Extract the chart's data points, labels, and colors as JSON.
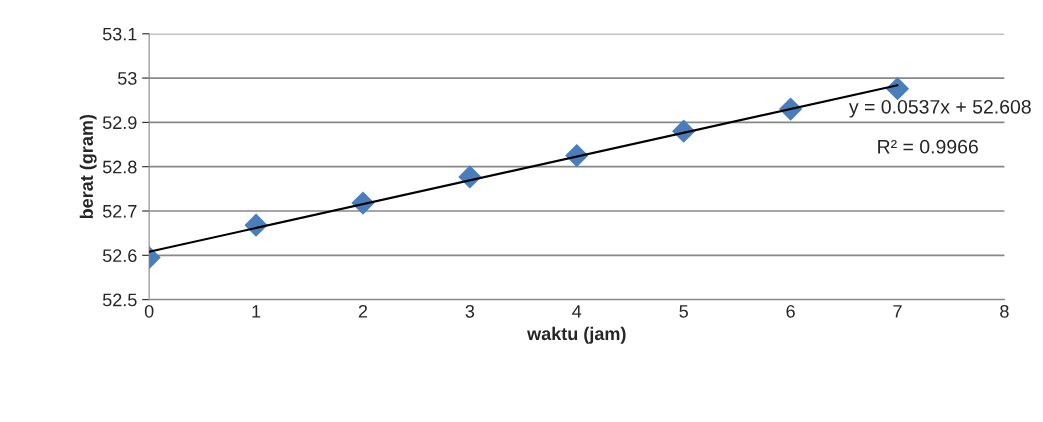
{
  "chart_data": {
    "type": "scatter",
    "xlabel": "waktu (jam)",
    "ylabel": "berat (gram)",
    "series": [
      {
        "color": "#4a7ebb",
        "x": [
          0,
          1,
          2,
          3,
          4,
          5,
          6,
          7
        ],
        "values": [
          52.595,
          52.668,
          52.718,
          52.777,
          52.825,
          52.88,
          52.93,
          52.976
        ],
        "marker": "diamond"
      },
      {
        "type": "line",
        "color": "#000000",
        "x": [
          0,
          7
        ],
        "values": [
          52.608,
          52.984
        ],
        "marker": "none"
      }
    ],
    "annotations": [
      "y = 0.0537x + 52.608",
      "R² = 0.9966"
    ],
    "xlim": [
      0,
      8
    ],
    "xticks": [
      0,
      1,
      2,
      3,
      4,
      5,
      6,
      7,
      8
    ],
    "ylim": [
      52.5,
      53.1
    ],
    "yticks": [
      52.5,
      52.6,
      52.7,
      52.8,
      52.9,
      53,
      53.1
    ],
    "grid": "y",
    "legend": false
  }
}
